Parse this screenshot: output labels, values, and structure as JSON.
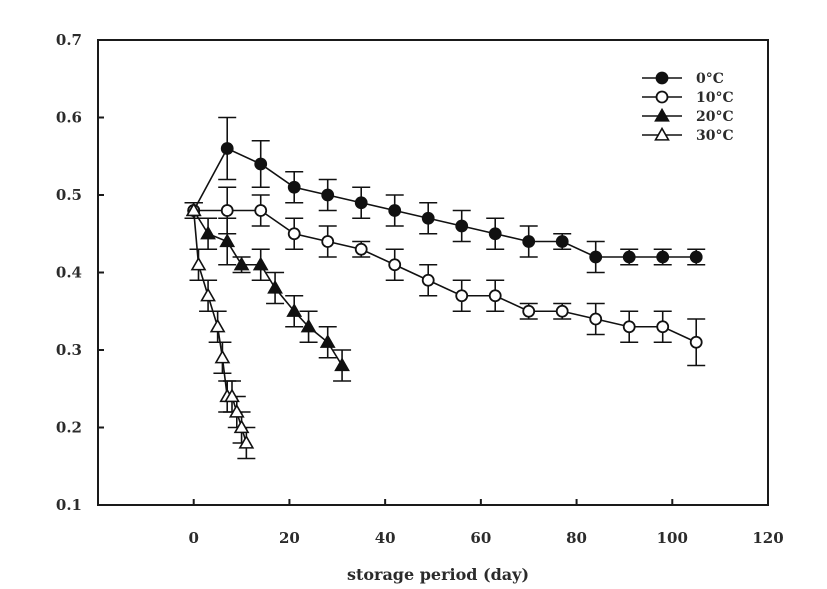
{
  "chart_data": {
    "type": "line",
    "title": "",
    "xlabel": "storage period (day)",
    "ylabel": "",
    "xlim": [
      -20,
      120
    ],
    "ylim": [
      0.1,
      0.7
    ],
    "xticks": [
      0,
      20,
      40,
      60,
      80,
      100,
      120
    ],
    "xtick_labels": [
      "0",
      "20",
      "40",
      "60",
      "80",
      "100",
      "120"
    ],
    "yticks": [
      0.1,
      0.2,
      0.3,
      0.4,
      0.5,
      0.6,
      0.7
    ],
    "ytick_labels": [
      "0.1",
      "0.2",
      "0.3",
      "0.4",
      "0.5",
      "0.6",
      "0.7"
    ],
    "grid": false,
    "legend_position": "top-right",
    "series": [
      {
        "name": "0°C",
        "marker": "filled-circle",
        "x": [
          0,
          7,
          14,
          21,
          28,
          35,
          42,
          49,
          56,
          63,
          70,
          77,
          84,
          91,
          98,
          105
        ],
        "y": [
          0.48,
          0.56,
          0.54,
          0.51,
          0.5,
          0.49,
          0.48,
          0.47,
          0.46,
          0.45,
          0.44,
          0.44,
          0.42,
          0.42,
          0.42,
          0.42
        ],
        "err": [
          0.01,
          0.04,
          0.03,
          0.02,
          0.02,
          0.02,
          0.02,
          0.02,
          0.02,
          0.02,
          0.02,
          0.01,
          0.02,
          0.01,
          0.01,
          0.01
        ]
      },
      {
        "name": "10°C",
        "marker": "open-circle",
        "x": [
          0,
          7,
          14,
          21,
          28,
          35,
          42,
          49,
          56,
          63,
          70,
          77,
          84,
          91,
          98,
          105
        ],
        "y": [
          0.48,
          0.48,
          0.48,
          0.45,
          0.44,
          0.43,
          0.41,
          0.39,
          0.37,
          0.37,
          0.35,
          0.35,
          0.34,
          0.33,
          0.33,
          0.31
        ],
        "err": [
          0.01,
          0.03,
          0.02,
          0.02,
          0.02,
          0.01,
          0.02,
          0.02,
          0.02,
          0.02,
          0.01,
          0.01,
          0.02,
          0.02,
          0.02,
          0.03
        ]
      },
      {
        "name": "20°C",
        "marker": "filled-triangle",
        "x": [
          0,
          3,
          7,
          10,
          14,
          17,
          21,
          24,
          28,
          31
        ],
        "y": [
          0.48,
          0.45,
          0.44,
          0.41,
          0.41,
          0.38,
          0.35,
          0.33,
          0.31,
          0.28
        ],
        "err": [
          0.01,
          0.02,
          0.03,
          0.01,
          0.02,
          0.02,
          0.02,
          0.02,
          0.02,
          0.02
        ]
      },
      {
        "name": "30°C",
        "marker": "open-triangle",
        "x": [
          0,
          1,
          3,
          5,
          6,
          7,
          8,
          9,
          10,
          11
        ],
        "y": [
          0.48,
          0.41,
          0.37,
          0.33,
          0.29,
          0.24,
          0.24,
          0.22,
          0.2,
          0.18
        ],
        "err": [
          0.01,
          0.02,
          0.02,
          0.02,
          0.02,
          0.02,
          0.02,
          0.02,
          0.02,
          0.02
        ]
      }
    ]
  }
}
